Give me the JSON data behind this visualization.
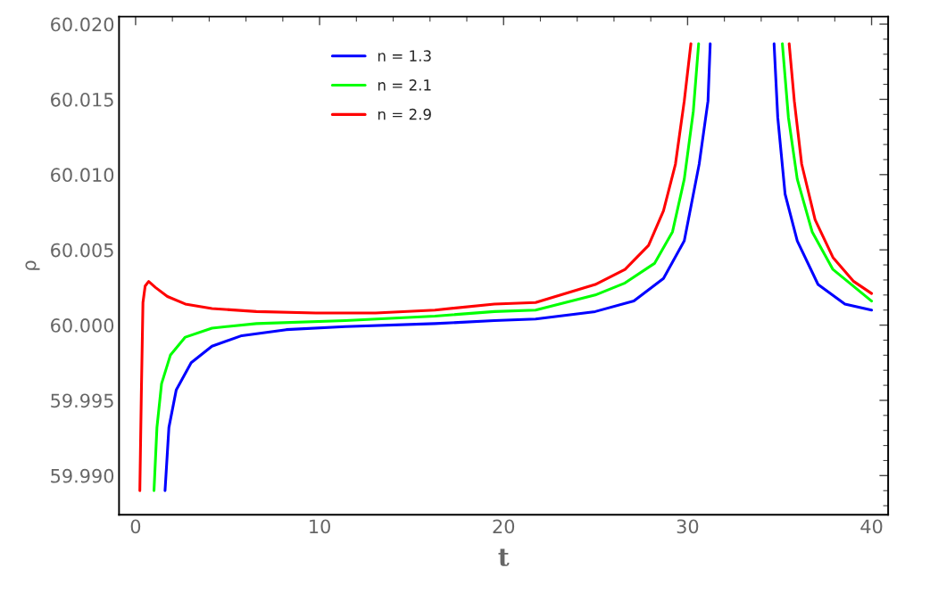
{
  "chart_data": {
    "type": "line",
    "xlabel": "t",
    "ylabel": "ρ",
    "xlim": [
      -0.9,
      40.9
    ],
    "ylim": [
      59.9874,
      60.0205
    ],
    "xticks": [
      0,
      10,
      20,
      30,
      40
    ],
    "yticks": [
      {
        "value": 59.99,
        "label": "59.990"
      },
      {
        "value": 59.995,
        "label": "59.995"
      },
      {
        "value": 60.0,
        "label": "60.000"
      },
      {
        "value": 60.005,
        "label": "60.005"
      },
      {
        "value": 60.01,
        "label": "60.010"
      },
      {
        "value": 60.015,
        "label": "60.015"
      },
      {
        "value": 60.02,
        "label": "60.020"
      }
    ],
    "grid": false,
    "legend": "top left",
    "marker": "none",
    "line_style": "solid",
    "series": [
      {
        "name": "n = 1.3",
        "color": "#0000ff",
        "x": [
          1.6,
          1.81,
          2.21,
          3.02,
          4.15,
          5.77,
          8.19,
          11.4,
          16.27,
          19.5,
          21.74,
          24.98,
          27.08,
          28.69,
          29.82,
          30.63,
          31.11,
          31.23,
          33.0,
          34.7,
          34.9,
          35.3,
          35.96,
          37.09,
          38.55,
          40.0
        ],
        "values": [
          59.989,
          59.9932,
          59.9957,
          59.9975,
          59.9986,
          59.9993,
          59.9997,
          59.9999,
          60.0001,
          60.0003,
          60.0004,
          60.0009,
          60.0016,
          60.0031,
          60.0056,
          60.0107,
          60.0149,
          60.0187,
          null,
          60.0187,
          60.0138,
          60.0087,
          60.0056,
          60.0027,
          60.0014,
          60.001
        ]
      },
      {
        "name": "n = 2.1",
        "color": "#00ff00",
        "x": [
          1.0,
          1.16,
          1.41,
          1.89,
          2.7,
          4.15,
          6.57,
          11.4,
          16.27,
          19.5,
          21.74,
          24.98,
          26.6,
          28.2,
          29.18,
          29.82,
          30.31,
          30.6,
          33.0,
          35.15,
          35.48,
          35.96,
          36.77,
          37.9,
          40.0
        ],
        "values": [
          59.989,
          59.9932,
          59.9961,
          59.998,
          59.9992,
          59.9998,
          60.0001,
          60.0003,
          60.0006,
          60.0009,
          60.001,
          60.002,
          60.0028,
          60.0041,
          60.0062,
          60.0097,
          60.0142,
          60.0187,
          null,
          60.0187,
          60.0138,
          60.0097,
          60.0062,
          60.0037,
          60.0016
        ]
      },
      {
        "name": "n = 2.9",
        "color": "#ff0000",
        "x": [
          0.23,
          0.31,
          0.4,
          0.52,
          0.71,
          1.08,
          1.73,
          2.7,
          4.15,
          6.57,
          9.8,
          13.04,
          16.27,
          19.5,
          21.74,
          24.98,
          26.6,
          27.88,
          28.69,
          29.34,
          29.82,
          30.18,
          33.0,
          35.52,
          35.8,
          36.2,
          36.93,
          37.9,
          39.03,
          40.0
        ],
        "values": [
          59.989,
          59.9953,
          60.0015,
          60.0026,
          60.0029,
          60.0025,
          60.0019,
          60.0014,
          60.0011,
          60.0009,
          60.0008,
          60.0008,
          60.001,
          60.0014,
          60.0015,
          60.0027,
          60.0037,
          60.0053,
          60.0076,
          60.0107,
          60.0149,
          60.0187,
          null,
          60.0187,
          60.0149,
          60.0107,
          60.007,
          60.0045,
          60.0029,
          60.0021
        ]
      }
    ]
  }
}
